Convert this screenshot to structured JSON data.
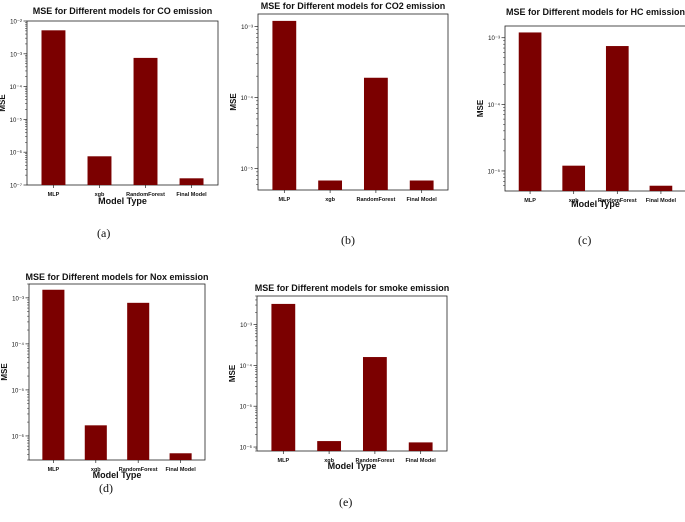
{
  "chart_data": [
    {
      "type": "bar",
      "panel": "(a)",
      "title": "MSE for Different models for CO emission",
      "xlabel": "Model Type",
      "ylabel": "MSE",
      "yscale": "log",
      "ylim": [
        1e-07,
        0.01
      ],
      "yticks": [
        {
          "value": 1e-07,
          "label": "10⁻⁷"
        },
        {
          "value": 1e-06,
          "label": "10⁻⁶"
        },
        {
          "value": 1e-05,
          "label": "10⁻⁵"
        },
        {
          "value": 0.0001,
          "label": "10⁻⁴"
        },
        {
          "value": 0.001,
          "label": "10⁻³"
        },
        {
          "value": 0.01,
          "label": "10⁻²"
        }
      ],
      "categories": [
        "MLP",
        "xgb",
        "RandomForest",
        "Final Model"
      ],
      "values": [
        0.0052,
        7.5e-07,
        0.00075,
        1.6e-07
      ],
      "bar_color": "#7b0000"
    },
    {
      "type": "bar",
      "panel": "(b)",
      "title": "MSE for Different models for CO2 emission",
      "xlabel": "",
      "ylabel": "MSE",
      "yscale": "log",
      "ylim": [
        5e-06,
        0.0015
      ],
      "yticks": [
        {
          "value": 1e-05,
          "label": "10⁻⁵"
        },
        {
          "value": 0.0001,
          "label": "10⁻⁴"
        },
        {
          "value": 0.001,
          "label": "10⁻³"
        }
      ],
      "categories": [
        "MLP",
        "xgb",
        "RandomForest",
        "Final Model"
      ],
      "values": [
        0.0012,
        6.8e-06,
        0.00019,
        6.8e-06
      ],
      "bar_color": "#7b0000"
    },
    {
      "type": "bar",
      "panel": "(c)",
      "title": "MSE for Different models for HC emission",
      "xlabel": "Model Type",
      "ylabel": "MSE",
      "yscale": "log",
      "ylim": [
        5e-06,
        0.0015
      ],
      "yticks": [
        {
          "value": 1e-05,
          "label": "10⁻⁵"
        },
        {
          "value": 0.0001,
          "label": "10⁻⁴"
        },
        {
          "value": 0.001,
          "label": "10⁻³"
        }
      ],
      "categories": [
        "MLP",
        "xgb",
        "RandomForest",
        "Final Model"
      ],
      "values": [
        0.0012,
        1.2e-05,
        0.00075,
        6e-06
      ],
      "bar_color": "#7b0000"
    },
    {
      "type": "bar",
      "panel": "(d)",
      "title": "MSE for Different models for Nox emission",
      "xlabel": "Model Type",
      "ylabel": "MSE",
      "yscale": "log",
      "ylim": [
        3e-07,
        0.002
      ],
      "yticks": [
        {
          "value": 1e-06,
          "label": "10⁻⁶"
        },
        {
          "value": 1e-05,
          "label": "10⁻⁵"
        },
        {
          "value": 0.0001,
          "label": "10⁻⁴"
        },
        {
          "value": 0.001,
          "label": "10⁻³"
        }
      ],
      "categories": [
        "MLP",
        "xgb",
        "RandomForest",
        "Final Model"
      ],
      "values": [
        0.0015,
        1.7e-06,
        0.00078,
        4.2e-07
      ],
      "bar_color": "#7b0000"
    },
    {
      "type": "bar",
      "panel": "(e)",
      "title": "MSE for Different models for smoke emission",
      "xlabel": "Model Type",
      "ylabel": "MSE",
      "yscale": "log",
      "ylim": [
        8e-07,
        0.005
      ],
      "yticks": [
        {
          "value": 1e-06,
          "label": "10⁻⁶"
        },
        {
          "value": 1e-05,
          "label": "10⁻⁵"
        },
        {
          "value": 0.0001,
          "label": "10⁻⁴"
        },
        {
          "value": 0.001,
          "label": "10⁻³"
        }
      ],
      "categories": [
        "MLP",
        "xgb",
        "RandomForest",
        "Final Model"
      ],
      "values": [
        0.0032,
        1.4e-06,
        0.00016,
        1.3e-06
      ],
      "bar_color": "#7b0000"
    }
  ]
}
